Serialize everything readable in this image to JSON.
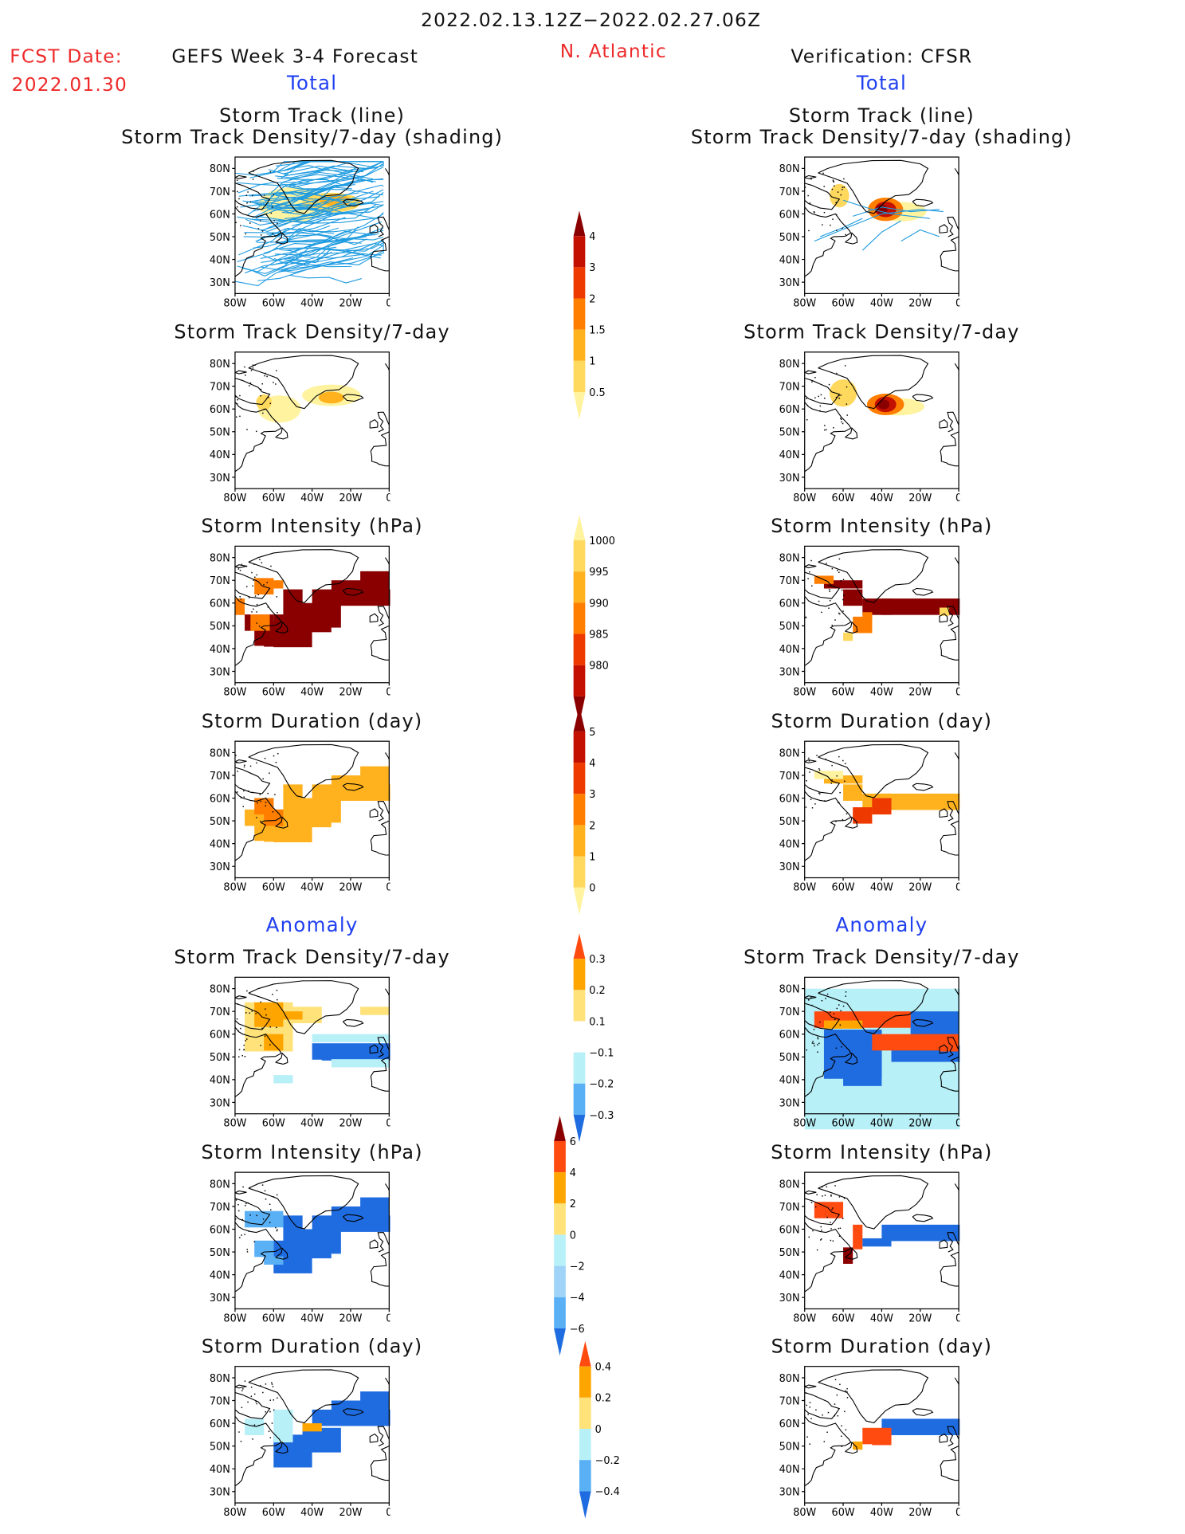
{
  "header": {
    "date_range": "2022.02.13.12Z−2022.02.27.06Z",
    "fcst_label": "FCST Date:",
    "fcst_date": "2022.01.30",
    "model_title": "GEFS Week 3-4 Forecast",
    "region": "N. Atlantic",
    "verification": "Verification: CFSR"
  },
  "sections": {
    "total": "Total",
    "anomaly": "Anomaly"
  },
  "panel_titles": {
    "track_line": "Storm Track (line)",
    "track_density_shading": "Storm Track Density/7-day (shading)",
    "track_density": "Storm Track Density/7-day",
    "intensity": "Storm Intensity (hPa)",
    "duration": "Storm Duration (day)"
  },
  "axes": {
    "lon_ticks": [
      "80W",
      "60W",
      "40W",
      "20W",
      "0"
    ],
    "lat_ticks": [
      "80N",
      "70N",
      "60N",
      "50N",
      "40N",
      "30N"
    ]
  },
  "colorbars": {
    "density_total": [
      "4",
      "3",
      "2",
      "1.5",
      "1",
      "0.5"
    ],
    "intensity_total": [
      "1000",
      "995",
      "990",
      "985",
      "980"
    ],
    "duration_total": [
      "5",
      "4",
      "3",
      "2",
      "1",
      "0"
    ],
    "density_anom": [
      "0.3",
      "0.2",
      "0.1",
      "−0.1",
      "−0.2",
      "−0.3"
    ],
    "intensity_anom": [
      "6",
      "4",
      "2",
      "0",
      "−2",
      "−4",
      "−6"
    ],
    "duration_anom": [
      "0.4",
      "0.2",
      "0",
      "−0.2",
      "−0.4"
    ]
  },
  "colors": {
    "title_red": "#ee2a2a",
    "section_blue": "#1f3ff0",
    "track_line": "#1e9be0",
    "warm_scale": [
      "#fff3a0",
      "#ffd85e",
      "#ffb21e",
      "#ff7e00",
      "#ee3a00",
      "#c41000",
      "#8a0000"
    ],
    "anom_warm": [
      "#ffe27a",
      "#ffa500",
      "#ff4a10"
    ],
    "anom_cool": [
      "#b8f0f8",
      "#5ab0f5",
      "#1f6ce0"
    ]
  }
}
